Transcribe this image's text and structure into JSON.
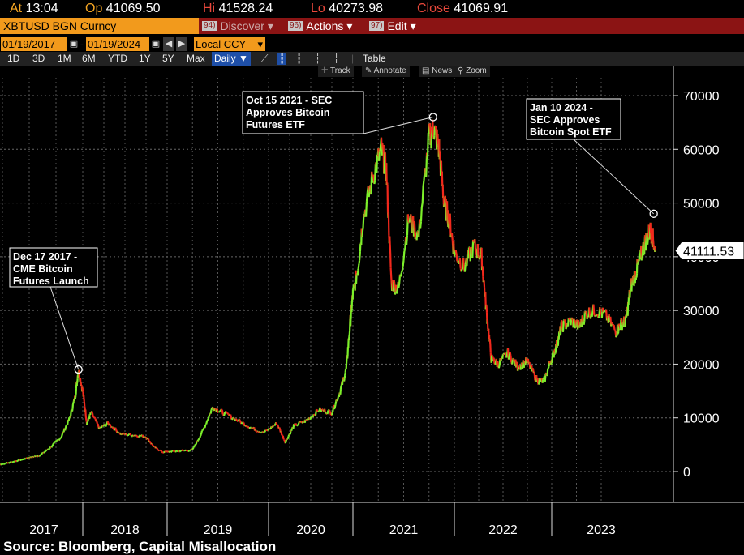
{
  "quote": {
    "at_label": "At",
    "at_value": "13:04",
    "op_label": "Op",
    "op_value": "41069.50",
    "hi_label": "Hi",
    "hi_value": "41528.24",
    "lo_label": "Lo",
    "lo_value": "40273.98",
    "close_label": "Close",
    "close_value": "41069.91"
  },
  "ticker": "XBTUSD BGN Curncy",
  "menu": [
    {
      "num": "94)",
      "label": "Discover",
      "dim": true
    },
    {
      "num": "96)",
      "label": "Actions",
      "dim": false
    },
    {
      "num": "97)",
      "label": "Edit",
      "dim": false
    }
  ],
  "dates": {
    "start": "01/19/2017",
    "end": "01/19/2024",
    "currency": "Local CCY"
  },
  "periods": [
    "1D",
    "3D",
    "1M",
    "6M",
    "YTD",
    "1Y",
    "5Y",
    "Max"
  ],
  "frequency": "Daily",
  "table_label": "Table",
  "tools": [
    "Track",
    "Annotate",
    "News",
    "Zoom"
  ],
  "last_price_tag": "41111.53",
  "source": "Source: Bloomberg, Capital Misallocation",
  "chart_data": {
    "type": "line",
    "x_categories": [
      "2017",
      "2018",
      "2019",
      "2020",
      "2021",
      "2022",
      "2023"
    ],
    "y_ticks": [
      0,
      10000,
      20000,
      30000,
      40000,
      50000,
      60000,
      70000
    ],
    "ylim": [
      -5000,
      75000
    ],
    "series": [
      {
        "x": [
          2017.05,
          2017.2,
          2017.35,
          2017.5,
          2017.6,
          2017.7,
          2017.8,
          2017.88,
          2017.93,
          2017.96,
          2018.0,
          2018.05,
          2018.1,
          2018.2,
          2018.3,
          2018.45,
          2018.6,
          2018.75,
          2018.85,
          2018.95,
          2019.1,
          2019.25,
          2019.35,
          2019.45,
          2019.55,
          2019.7,
          2019.85,
          2019.95,
          2020.1,
          2020.2,
          2020.3,
          2020.45,
          2020.6,
          2020.75,
          2020.85,
          2020.92,
          2020.97,
          2021.0,
          2021.05,
          2021.1,
          2021.2,
          2021.28,
          2021.33,
          2021.38,
          2021.45,
          2021.55,
          2021.65,
          2021.75,
          2021.8,
          2021.85,
          2021.9,
          2021.95,
          2022.0,
          2022.1,
          2022.2,
          2022.28,
          2022.33,
          2022.38,
          2022.45,
          2022.55,
          2022.65,
          2022.75,
          2022.85,
          2022.92,
          2023.0,
          2023.05,
          2023.1,
          2023.2,
          2023.28,
          2023.35,
          2023.45,
          2023.55,
          2023.65,
          2023.7,
          2023.75,
          2023.8,
          2023.85,
          2023.9,
          2023.95,
          2024.0,
          2024.05
        ],
        "y": [
          900,
          1200,
          1800,
          2600,
          3000,
          4500,
          6500,
          10000,
          14000,
          19000,
          15000,
          9000,
          11000,
          8000,
          9000,
          7000,
          6800,
          6500,
          4500,
          3600,
          3800,
          4000,
          7500,
          12000,
          11000,
          9500,
          8000,
          7200,
          9000,
          5500,
          8500,
          9500,
          11500,
          11000,
          15000,
          19000,
          28000,
          33000,
          38000,
          47000,
          55000,
          60000,
          56000,
          35000,
          34000,
          47000,
          44000,
          62000,
          64000,
          60000,
          50000,
          47000,
          41000,
          38000,
          42000,
          40000,
          30000,
          21000,
          20000,
          22000,
          19500,
          20500,
          17000,
          16800,
          21000,
          23500,
          27000,
          28000,
          27000,
          29500,
          30000,
          29000,
          26000,
          27500,
          28000,
          34500,
          37000,
          40000,
          43000,
          45000,
          41111
        ],
        "name": ""
      }
    ],
    "annotations": [
      {
        "text": "Dec 17 2017 -\nCME Bitcoin\nFutures Launch",
        "x": 2017.96,
        "y": 19000
      },
      {
        "text": "Oct 15 2021 - SEC\nApproves Bitcoin\nFutures ETF",
        "x": 2021.79,
        "y": 66000
      },
      {
        "text": "Jan 10 2024 -\nSEC Approves\nBitcoin Spot ETF",
        "x": 2024.03,
        "y": 48000
      }
    ]
  }
}
